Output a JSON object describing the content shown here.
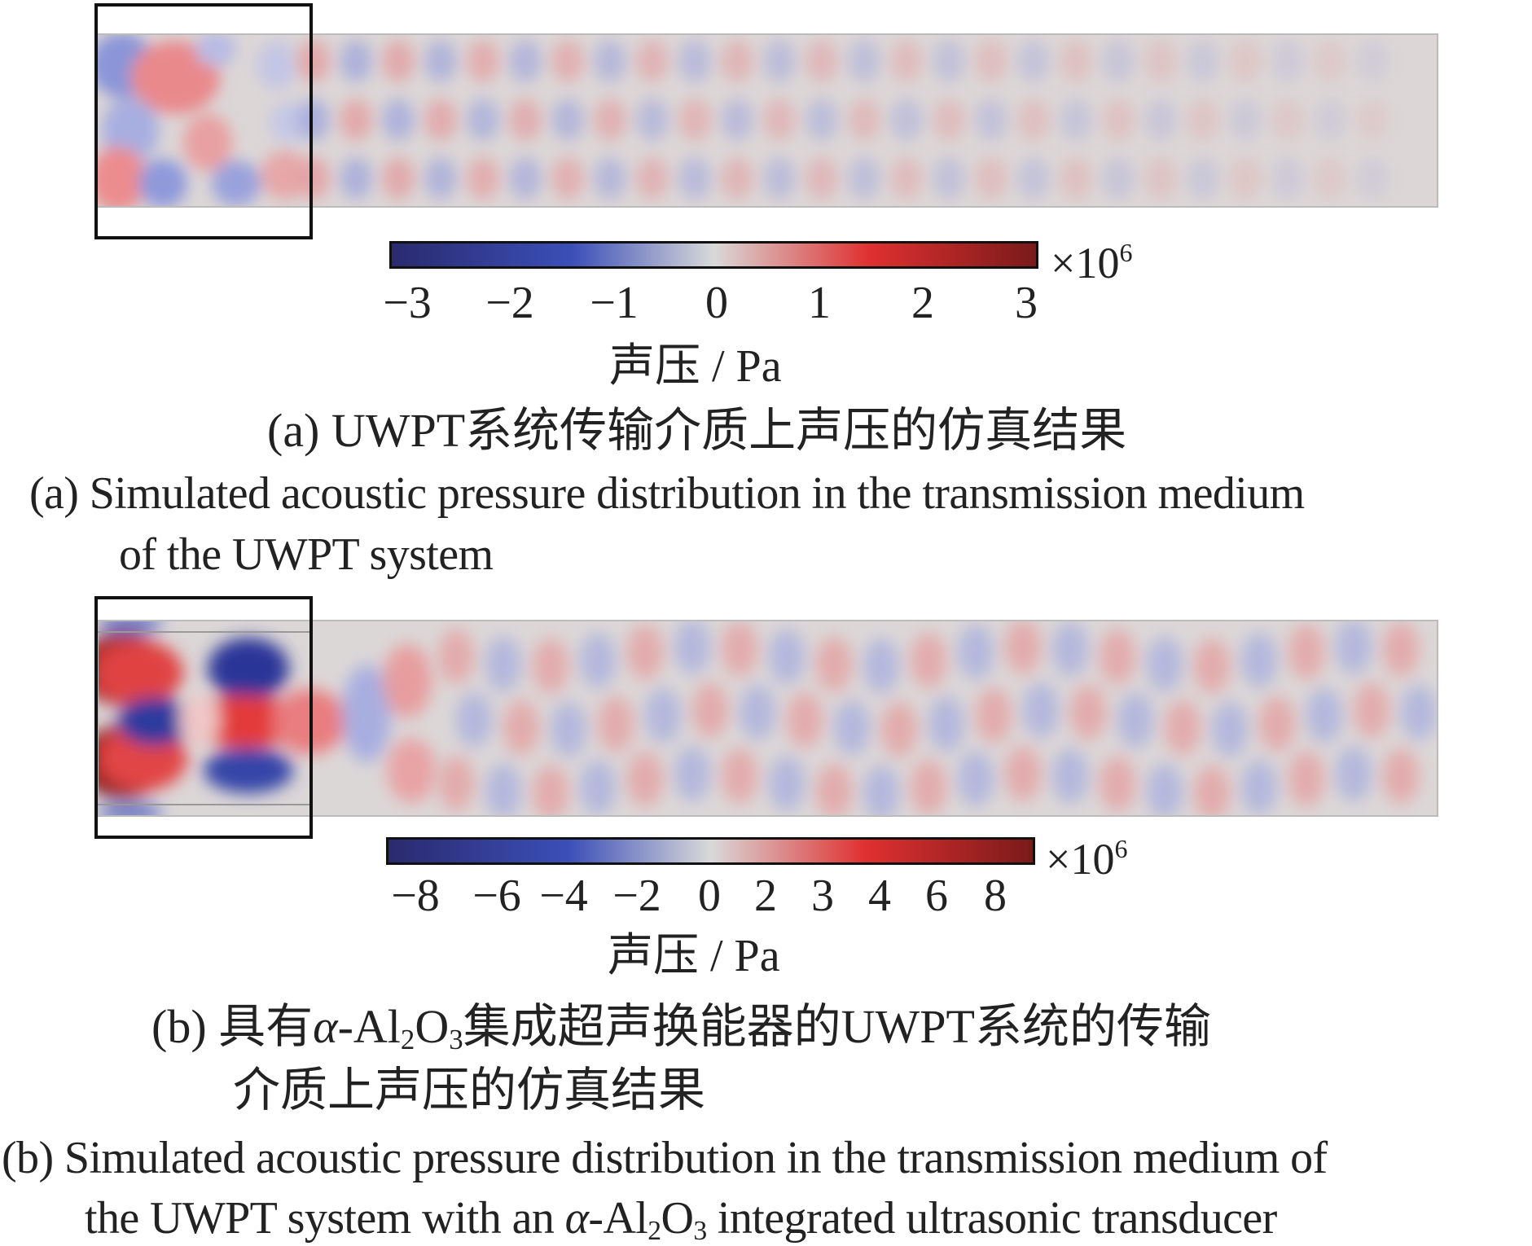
{
  "colors": {
    "negative_max": "#2a2a6e",
    "negative": "#3b4fb8",
    "zero": "#d9d9d9",
    "positive": "#e03030",
    "positive_max": "#7a1a1a",
    "frame": "#111111"
  },
  "panel_a": {
    "colorbar": {
      "exponent_base": "×10",
      "exponent_power": "6",
      "ticks": [
        "−3",
        "−2",
        "−1",
        "0",
        "1",
        "2",
        "3"
      ],
      "label": "声压 / Pa"
    },
    "caption_cn": "(a)  UWPT系统传输介质上声压的仿真结果",
    "caption_en_line1": "(a)  Simulated acoustic pressure distribution in the transmission medium",
    "caption_en_line2": "of the UWPT system"
  },
  "panel_b": {
    "colorbar": {
      "exponent_base": "×10",
      "exponent_power": "6",
      "ticks": [
        "−8",
        "−6",
        "−4",
        "−2",
        "0",
        "2",
        "3",
        "4",
        "6",
        "8"
      ],
      "label": "声压 / Pa"
    },
    "caption_cn_line1_prefix": "(b)  具有",
    "caption_cn_alpha": "α",
    "caption_cn_al": "-Al",
    "caption_cn_sub2": "2",
    "caption_cn_o": "O",
    "caption_cn_sub3": "3",
    "caption_cn_line1_suffix": "集成超声换能器的UWPT系统的传输",
    "caption_cn_line2": "介质上声压的仿真结果",
    "caption_en_line1": "(b)  Simulated acoustic pressure distribution in the transmission medium of",
    "caption_en_line2_prefix": "the UWPT system with an ",
    "caption_en_alpha": "α",
    "caption_en_al": "-Al",
    "caption_en_sub2": "2",
    "caption_en_o": "O",
    "caption_en_sub3": "3",
    "caption_en_line2_suffix": " integrated ultrasonic transducer"
  }
}
